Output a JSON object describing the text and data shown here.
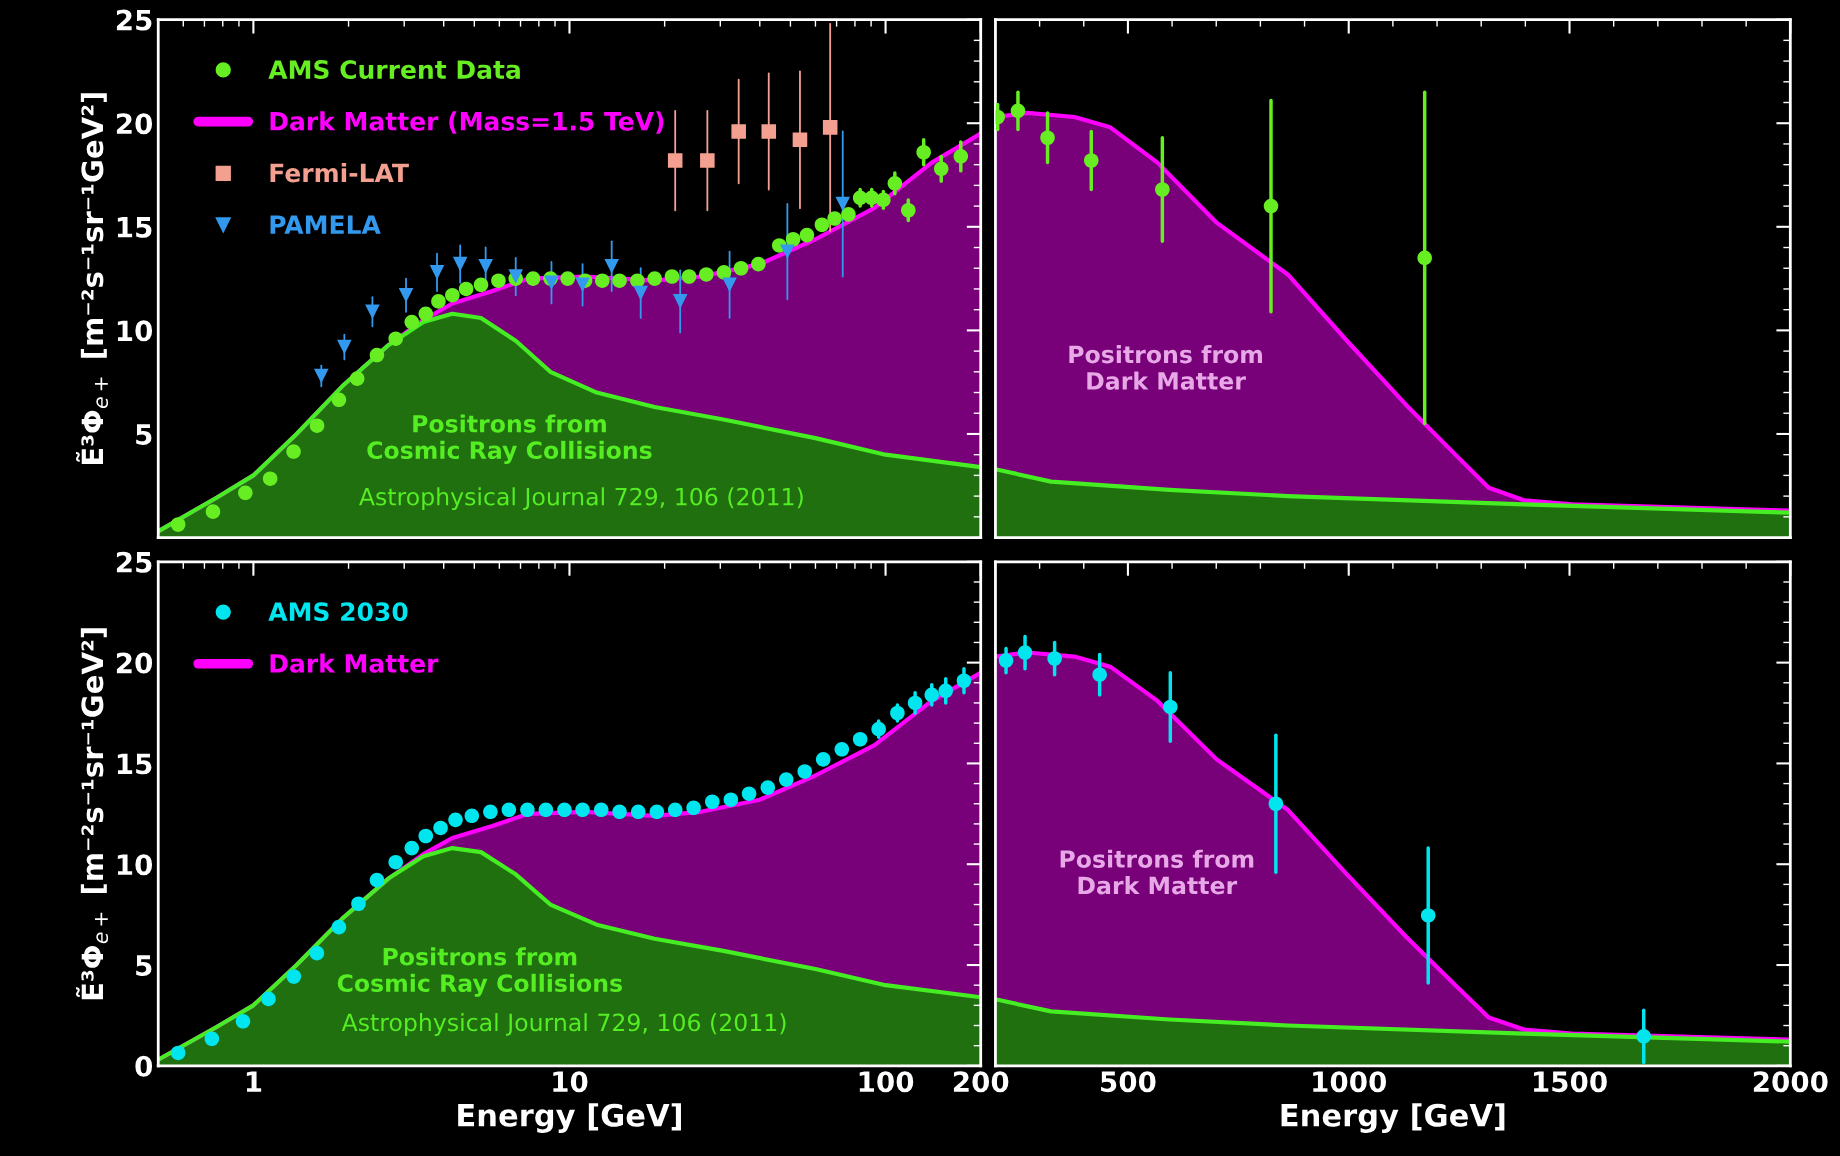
{
  "chart_data": [
    {
      "type": "area",
      "ylabel": "Ẽ³Φ$_{e+}$ [m⁻²s⁻¹sr⁻¹GeV²]",
      "log": "x",
      "xlim": [
        0.5,
        200
      ],
      "xticks": [
        1,
        10,
        100,
        200
      ],
      "ylim": [
        0,
        25
      ],
      "yticks": [
        5,
        10,
        15,
        20,
        25
      ],
      "tick_labels": "y",
      "legend": "top left",
      "series": [
        {
          "type": "scatter",
          "name": "AMS Current Data",
          "color": "#66ee22",
          "marker": "circle",
          "x": [
            0.578,
            0.745,
            0.943,
            1.13,
            1.34,
            1.59,
            1.865,
            2.13,
            2.46,
            2.82,
            3.17,
            3.51,
            3.85,
            4.26,
            4.71,
            5.25,
            5.96,
            6.76,
            7.67,
            8.71,
            9.87,
            11.2,
            12.7,
            14.4,
            16.4,
            18.6,
            21.1,
            23.9,
            27.1,
            30.8,
            34.9,
            39.6,
            46.1,
            51.0,
            56.4,
            62.9,
            69.0,
            76.3,
            83.1,
            90.4,
            98.4,
            107,
            118,
            132,
            150,
            173
          ],
          "values": [
            0.63,
            1.25,
            2.16,
            2.84,
            4.15,
            5.4,
            6.65,
            7.67,
            8.81,
            9.6,
            10.4,
            10.8,
            11.4,
            11.7,
            12.0,
            12.2,
            12.4,
            12.5,
            12.5,
            12.5,
            12.5,
            12.4,
            12.4,
            12.4,
            12.4,
            12.5,
            12.6,
            12.6,
            12.7,
            12.8,
            13.0,
            13.2,
            14.1,
            14.4,
            14.6,
            15.1,
            15.4,
            15.6,
            16.4,
            16.4,
            16.3,
            17.1,
            15.8,
            18.6,
            17.8,
            18.4
          ],
          "errors": [
            null,
            null,
            null,
            null,
            null,
            null,
            null,
            null,
            null,
            null,
            null,
            null,
            null,
            null,
            null,
            null,
            null,
            null,
            null,
            null,
            null,
            null,
            null,
            null,
            null,
            null,
            null,
            null,
            null,
            null,
            null,
            null,
            null,
            null,
            null,
            null,
            null,
            null,
            0.4,
            0.4,
            0.4,
            0.5,
            0.5,
            0.6,
            0.6,
            0.7
          ]
        },
        {
          "name": "Dark Matter (Mass=1.5 TeV)",
          "color": "#ff00ff",
          "x": [
            0.5,
            0.76,
            1.0,
            1.37,
            1.91,
            2.68,
            3.45,
            4.26,
            5.7,
            7.4,
            11.2,
            18.6,
            26,
            40,
            60,
            92,
            140,
            200
          ],
          "values": [
            0.3,
            1.9,
            3.0,
            5.0,
            7.3,
            9.3,
            10.5,
            11.3,
            11.9,
            12.5,
            12.6,
            12.4,
            12.6,
            13.2,
            14.4,
            15.9,
            18.1,
            19.5
          ]
        },
        {
          "type": "scatter",
          "name": "Fermi-LAT",
          "color": "#f4a090",
          "marker": "square",
          "x": [
            21.6,
            27.3,
            34.3,
            42.7,
            53.6,
            66.8
          ],
          "values": [
            18.2,
            18.2,
            19.6,
            19.6,
            19.2,
            19.8
          ],
          "errors": [
            2.4,
            2.4,
            2.5,
            2.8,
            3.3,
            5.0
          ]
        },
        {
          "type": "scatter",
          "name": "PAMELA",
          "color": "#3399ee",
          "marker": "triangle",
          "x": [
            1.64,
            1.94,
            2.38,
            3.04,
            3.81,
            4.51,
            5.43,
            6.76,
            8.77,
            11.0,
            13.6,
            16.8,
            22.4,
            32.1,
            48.9,
            73.2
          ],
          "values": [
            7.8,
            9.2,
            10.9,
            11.7,
            12.8,
            13.2,
            13.1,
            12.6,
            12.3,
            12.2,
            13.1,
            11.8,
            11.4,
            12.2,
            13.8,
            16.1
          ],
          "errors": [
            0.5,
            0.6,
            0.7,
            0.8,
            0.9,
            0.9,
            0.9,
            0.9,
            1.0,
            1.0,
            1.2,
            1.2,
            1.5,
            1.6,
            2.3,
            3.5
          ]
        },
        {
          "color": "#44ee22",
          "x": [
            0.5,
            0.76,
            1.0,
            1.37,
            1.91,
            2.68,
            3.45,
            4.26,
            5.25,
            6.76,
            8.7,
            12.2,
            18.6,
            30.7,
            60,
            100,
            200
          ],
          "values": [
            0.3,
            1.9,
            3.0,
            5.0,
            7.3,
            9.3,
            10.4,
            10.8,
            10.6,
            9.5,
            8.0,
            7.0,
            6.3,
            5.7,
            4.8,
            4.0,
            3.4
          ]
        }
      ],
      "annotations": [
        "Positrons from\nCosmic Ray Collisions",
        "Astrophysical Journal 729, 106 (2011)"
      ]
    },
    {
      "type": "area",
      "xlim": [
        200,
        2000
      ],
      "xticks": [
        500,
        1000,
        1500,
        2000
      ],
      "ylim": [
        0,
        25
      ],
      "yticks": [
        5,
        10,
        15,
        20,
        25
      ],
      "tick_labels": false,
      "series": [
        {
          "type": "scatter",
          "color": "#66ee22",
          "marker": "circle",
          "x": [
            205,
            251,
            318,
            417,
            578,
            824,
            1172
          ],
          "values": [
            20.3,
            20.6,
            19.3,
            18.2,
            16.8,
            16.0,
            13.5
          ],
          "errors": [
            0.6,
            0.9,
            1.2,
            1.4,
            2.5,
            5.1,
            8.0
          ]
        },
        {
          "color": "#ff00ff",
          "x": [
            200,
            272,
            379,
            460,
            567,
            701,
            862,
            996,
            1130,
            1237,
            1317,
            1397,
            1505,
            2000
          ],
          "values": [
            20.3,
            20.5,
            20.3,
            19.8,
            18.1,
            15.2,
            12.7,
            9.5,
            6.4,
            4.1,
            2.4,
            1.8,
            1.6,
            1.3
          ]
        },
        {
          "color": "#44ee22",
          "x": [
            200,
            326,
            594,
            862,
            1397,
            2000
          ],
          "values": [
            3.3,
            2.7,
            2.3,
            2.0,
            1.6,
            1.2
          ]
        }
      ],
      "annotations": [
        "Positrons from\nDark Matter"
      ]
    },
    {
      "type": "area",
      "ylabel": "Ẽ³Φ$_{e+}$ [m⁻²s⁻¹sr⁻¹GeV²]",
      "xlabel": "Energy [GeV]",
      "log": "x",
      "xlim": [
        0.5,
        200
      ],
      "xticks": [
        1,
        10,
        100,
        200
      ],
      "ylim": [
        0,
        25
      ],
      "yticks": [
        0,
        5,
        10,
        15,
        20,
        25
      ],
      "legend": "top left",
      "series": [
        {
          "type": "scatter",
          "name": "AMS 2030",
          "color": "#00e5ee",
          "marker": "circle",
          "x": [
            0.578,
            0.739,
            0.927,
            1.116,
            1.342,
            1.588,
            1.865,
            2.15,
            2.46,
            2.82,
            3.17,
            3.51,
            3.91,
            4.36,
            4.91,
            5.62,
            6.43,
            7.36,
            8.42,
            9.64,
            11.0,
            12.6,
            14.4,
            16.5,
            18.9,
            21.6,
            24.7,
            28.3,
            32.4,
            37.0,
            42.4,
            48.5,
            55.5,
            63.5,
            72.7,
            83.1,
            95.1,
            109,
            124,
            140,
            155,
            177
          ],
          "values": [
            0.64,
            1.34,
            2.21,
            3.32,
            4.43,
            5.59,
            6.88,
            8.04,
            9.21,
            10.1,
            10.8,
            11.4,
            11.8,
            12.2,
            12.4,
            12.6,
            12.7,
            12.7,
            12.7,
            12.7,
            12.7,
            12.7,
            12.6,
            12.6,
            12.6,
            12.7,
            12.8,
            13.1,
            13.2,
            13.5,
            13.8,
            14.2,
            14.6,
            15.2,
            15.7,
            16.2,
            16.7,
            17.5,
            18.0,
            18.4,
            18.6,
            19.1
          ],
          "errors": [
            null,
            null,
            null,
            null,
            null,
            null,
            null,
            null,
            null,
            null,
            null,
            null,
            null,
            null,
            null,
            null,
            null,
            null,
            null,
            null,
            null,
            null,
            null,
            null,
            null,
            null,
            null,
            null,
            null,
            null,
            null,
            null,
            null,
            null,
            null,
            null,
            0.4,
            0.4,
            0.5,
            0.5,
            0.6,
            0.6
          ]
        },
        {
          "name": "Dark Matter",
          "color": "#ff00ff",
          "x": [
            0.5,
            0.76,
            1.0,
            1.37,
            1.91,
            2.68,
            3.45,
            4.26,
            5.7,
            7.4,
            11.2,
            18.6,
            26,
            40,
            60,
            92,
            140,
            200
          ],
          "values": [
            0.3,
            1.9,
            3.0,
            5.0,
            7.3,
            9.3,
            10.5,
            11.3,
            11.9,
            12.5,
            12.6,
            12.4,
            12.6,
            13.2,
            14.4,
            15.9,
            18.1,
            19.5
          ]
        },
        {
          "color": "#44ee22",
          "x": [
            0.5,
            0.76,
            1.0,
            1.37,
            1.91,
            2.68,
            3.45,
            4.26,
            5.25,
            6.76,
            8.7,
            12.2,
            18.6,
            30.7,
            60,
            100,
            200
          ],
          "values": [
            0.3,
            1.9,
            3.0,
            5.0,
            7.3,
            9.3,
            10.4,
            10.8,
            10.6,
            9.5,
            8.0,
            7.0,
            6.3,
            5.7,
            4.8,
            4.0,
            3.4
          ]
        }
      ],
      "annotations": [
        "Positrons from\nCosmic Ray Collisions",
        "Astrophysical Journal 729, 106 (2011)"
      ]
    },
    {
      "type": "area",
      "xlabel": "Energy [GeV]",
      "xlim": [
        200,
        2000
      ],
      "xticks": [
        500,
        1000,
        1500,
        2000
      ],
      "ylim": [
        0,
        25
      ],
      "yticks": [
        0,
        5,
        10,
        15,
        20,
        25
      ],
      "tick_labels": "x",
      "series": [
        {
          "type": "scatter",
          "color": "#00e5ee",
          "marker": "circle",
          "x": [
            224,
            267,
            334,
            436,
            596,
            835,
            1180,
            1668
          ],
          "values": [
            20.1,
            20.5,
            20.2,
            19.4,
            17.8,
            13.0,
            7.46,
            1.46
          ],
          "errors": [
            0.6,
            0.8,
            0.8,
            1.0,
            1.7,
            3.4,
            3.35,
            1.3
          ]
        },
        {
          "color": "#ff00ff",
          "x": [
            200,
            272,
            379,
            460,
            567,
            701,
            862,
            996,
            1130,
            1237,
            1317,
            1397,
            1505,
            2000
          ],
          "values": [
            20.3,
            20.5,
            20.3,
            19.8,
            18.1,
            15.2,
            12.7,
            9.5,
            6.4,
            4.1,
            2.4,
            1.8,
            1.6,
            1.3
          ]
        },
        {
          "color": "#44ee22",
          "x": [
            200,
            326,
            594,
            862,
            1397,
            2000
          ],
          "values": [
            3.3,
            2.7,
            2.3,
            2.0,
            1.6,
            1.2
          ]
        }
      ],
      "annotations": [
        "Positrons from\nDark Matter"
      ]
    }
  ]
}
